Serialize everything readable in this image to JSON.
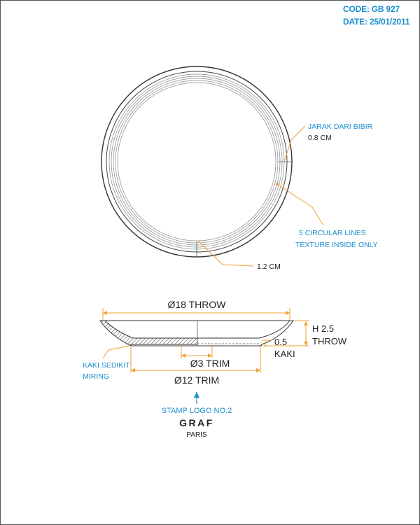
{
  "header": {
    "code": "CODE: GB 927",
    "date": "DATE: 25/01/2011"
  },
  "top_view": {
    "rim_note_line1": "JARAK DARI BIBIR",
    "rim_note_line2": "0.8 CM",
    "texture_note_line1": "5 CIRCULAR LINES",
    "texture_note_line2": "TEXTURE INSIDE ONLY",
    "depth_note": "1.2 CM"
  },
  "side_view": {
    "throw_diameter": "Ø18 THROW",
    "height_line1": "H 2.5",
    "height_line2": "THROW",
    "foot_value": "0.5",
    "foot_label": "KAKI",
    "inner_trim": "Ø3 TRIM",
    "outer_trim": "Ø12 TRIM",
    "foot_note_line1": "KAKI SEDIKIT",
    "foot_note_line2": "MIRING"
  },
  "stamp": {
    "label": "STAMP LOGO NO.2",
    "brand": "GRAF",
    "city": "PARIS"
  },
  "colors": {
    "accent_blue": "#1a8fd0",
    "dimension_orange": "#f0a030",
    "line_dark": "#333333"
  }
}
